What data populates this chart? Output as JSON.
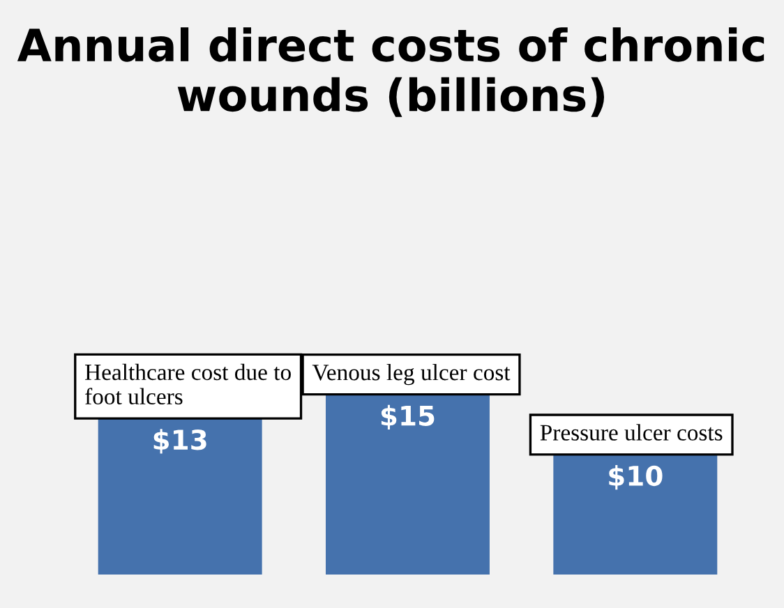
{
  "chart_data": {
    "type": "bar",
    "title": "Annual direct costs of chronic wounds (billions)",
    "categories": [
      "Healthcare cost due to foot ulcers",
      "Venous leg ulcer cost",
      "Pressure ulcer costs"
    ],
    "values": [
      13,
      15,
      10
    ],
    "value_labels": [
      "$13",
      "$15",
      "$10"
    ],
    "color": "#4572ad"
  }
}
